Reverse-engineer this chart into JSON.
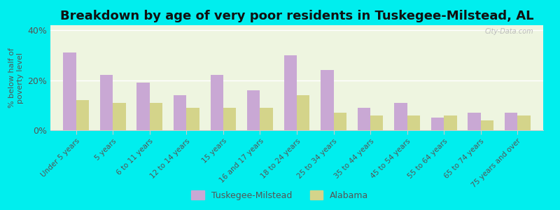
{
  "categories": [
    "Under 5 years",
    "5 years",
    "6 to 11 years",
    "12 to 14 years",
    "15 years",
    "16 and 17 years",
    "18 to 24 years",
    "25 to 34 years",
    "35 to 44 years",
    "45 to 54 years",
    "55 to 64 years",
    "65 to 74 years",
    "75 years and over"
  ],
  "tuskegee_values": [
    31,
    22,
    19,
    14,
    22,
    16,
    30,
    24,
    9,
    11,
    5,
    7,
    7
  ],
  "alabama_values": [
    12,
    11,
    11,
    9,
    9,
    9,
    14,
    7,
    6,
    6,
    6,
    4,
    6
  ],
  "tuskegee_color": "#c9a8d4",
  "alabama_color": "#d4d48a",
  "title": "Breakdown by age of very poor residents in Tuskegee-Milstead, AL",
  "ylabel": "% below half of\npoverty level",
  "ylim": [
    0,
    42
  ],
  "yticks": [
    0,
    20,
    40
  ],
  "ytick_labels": [
    "0%",
    "20%",
    "40%"
  ],
  "background_color": "#00eeee",
  "plot_bg_color": "#eef5e0",
  "legend_tuskegee": "Tuskegee-Milstead",
  "legend_alabama": "Alabama",
  "title_fontsize": 13,
  "bar_width": 0.35
}
